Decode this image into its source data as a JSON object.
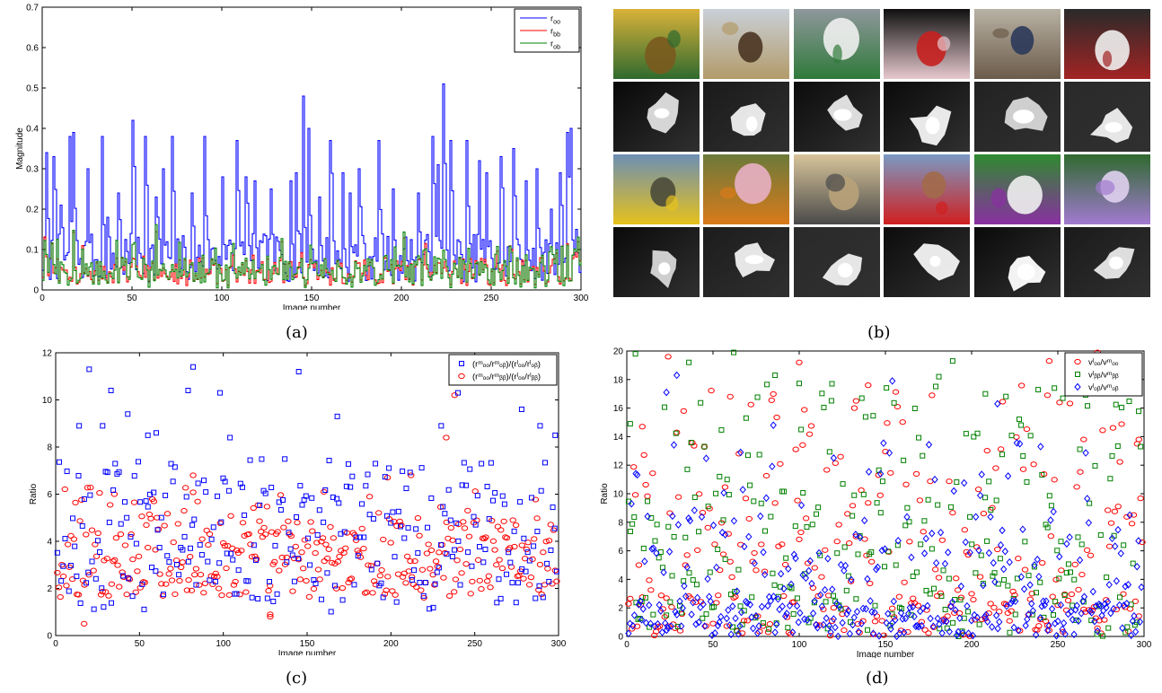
{
  "captions": {
    "a": "(a)",
    "b": "(b)",
    "c": "(c)",
    "d": "(d)"
  },
  "chart_data": [
    {
      "id": "a",
      "type": "line",
      "xlabel": "Image number",
      "ylabel": "Magnitude",
      "xlim": [
        0,
        300
      ],
      "ylim": [
        0,
        0.7
      ],
      "xticks": [
        0,
        50,
        100,
        150,
        200,
        250,
        300
      ],
      "yticks": [
        0,
        0.1,
        0.2,
        0.3,
        0.4,
        0.5,
        0.6,
        0.7
      ],
      "legend": {
        "placement": "top-right"
      },
      "series": [
        {
          "name": "r",
          "sub": "oo",
          "color": "#0000ff",
          "peaks": [
            [
              2,
              0.34
            ],
            [
              6,
              0.33
            ],
            [
              10,
              0.21
            ],
            [
              15,
              0.38
            ],
            [
              17,
              0.39
            ],
            [
              25,
              0.3
            ],
            [
              33,
              0.38
            ],
            [
              36,
              0.18
            ],
            [
              42,
              0.24
            ],
            [
              50,
              0.42
            ],
            [
              57,
              0.38
            ],
            [
              63,
              0.23
            ],
            [
              67,
              0.3
            ],
            [
              72,
              0.38
            ],
            [
              83,
              0.24
            ],
            [
              90,
              0.38
            ],
            [
              100,
              0.28
            ],
            [
              108,
              0.37
            ],
            [
              113,
              0.28
            ],
            [
              118,
              0.27
            ],
            [
              127,
              0.25
            ],
            [
              138,
              0.27
            ],
            [
              141,
              0.29
            ],
            [
              145,
              0.48
            ],
            [
              148,
              0.4
            ],
            [
              154,
              0.23
            ],
            [
              160,
              0.37
            ],
            [
              167,
              0.29
            ],
            [
              171,
              0.24
            ],
            [
              176,
              0.3
            ],
            [
              187,
              0.37
            ],
            [
              195,
              0.25
            ],
            [
              209,
              0.24
            ],
            [
              217,
              0.38
            ],
            [
              220,
              0.31
            ],
            [
              223,
              0.51
            ],
            [
              227,
              0.37
            ],
            [
              236,
              0.37
            ],
            [
              243,
              0.32
            ],
            [
              247,
              0.29
            ],
            [
              255,
              0.33
            ],
            [
              262,
              0.35
            ],
            [
              269,
              0.27
            ],
            [
              275,
              0.3
            ],
            [
              283,
              0.2
            ],
            [
              288,
              0.29
            ],
            [
              292,
              0.39
            ],
            [
              294,
              0.4
            ],
            [
              297,
              0.15
            ]
          ]
        },
        {
          "name": "r",
          "sub": "bb",
          "color": "#ff0000"
        },
        {
          "name": "r",
          "sub": "ob",
          "color": "#008000"
        }
      ]
    },
    {
      "id": "c",
      "type": "scatter",
      "xlabel": "Image number",
      "ylabel": "Ratio",
      "xlim": [
        0,
        300
      ],
      "ylim": [
        0,
        12
      ],
      "xticks": [
        0,
        50,
        100,
        150,
        200,
        250,
        300
      ],
      "yticks": [
        0,
        2,
        4,
        6,
        8,
        10,
        12
      ],
      "legend": {
        "placement": "top-right"
      },
      "series": [
        {
          "name": "(rᵐₒₒ/rᵐₒᵦ)/(rˡₒₒ/rˡₒᵦ)",
          "color": "#0000ff",
          "marker": "square",
          "highlights": [
            [
              20,
              11.3
            ],
            [
              82,
              11.4
            ],
            [
              145,
              11.2
            ],
            [
              33,
              10.4
            ],
            [
              79,
              10.4
            ],
            [
              98,
              10.3
            ],
            [
              240,
              10.3
            ],
            [
              43,
              9.4
            ],
            [
              168,
              9.3
            ],
            [
              230,
              8.9
            ],
            [
              278,
              9.6
            ],
            [
              289,
              8.9
            ],
            [
              298,
              8.5
            ],
            [
              55,
              8.5
            ],
            [
              104,
              8.4
            ],
            [
              60,
              8.6
            ],
            [
              14,
              8.9
            ],
            [
              28,
              8.9
            ]
          ]
        },
        {
          "name": "(rᵐₒₒ/rᵐᵦᵦ)/(rˡₒₒ/rˡᵦᵦ)",
          "color": "#ff0000",
          "marker": "circle",
          "highlights": [
            [
              238,
              10.2
            ],
            [
              233,
              8.4
            ],
            [
              82,
              6.8
            ],
            [
              198,
              6.7
            ],
            [
              212,
              6.8
            ],
            [
              160,
              6.1
            ],
            [
              35,
              6.0
            ],
            [
              17,
              0.5
            ],
            [
              128,
              0.8
            ],
            [
              128,
              0.9
            ]
          ]
        }
      ]
    },
    {
      "id": "d",
      "type": "scatter",
      "xlabel": "Image number",
      "ylabel": "Ratio",
      "xlim": [
        0,
        300
      ],
      "ylim": [
        0,
        20
      ],
      "xticks": [
        0,
        50,
        100,
        150,
        200,
        250,
        300
      ],
      "yticks": [
        0,
        2,
        4,
        6,
        8,
        10,
        12,
        14,
        16,
        18,
        20
      ],
      "legend": {
        "placement": "top-right"
      },
      "series": [
        {
          "name": "vˡₒₒ/vᵐₒₒ",
          "color": "#ff0000",
          "marker": "circle",
          "highlights": [
            [
              24,
              19.6
            ],
            [
              100,
              19.2
            ],
            [
              273,
              19.9
            ],
            [
              245,
              19.3
            ],
            [
              60,
              16.8
            ],
            [
              140,
              17.6
            ],
            [
              244,
              16.9
            ],
            [
              265,
              13.8
            ],
            [
              297,
              13.8
            ],
            [
              9,
              14.7
            ],
            [
              133,
              16.5
            ]
          ]
        },
        {
          "name": "vˡᵦᵦ/vᵐᵦᵦ",
          "color": "#008000",
          "marker": "square",
          "highlights": [
            [
              5,
              19.8
            ],
            [
              62,
              19.9
            ],
            [
              86,
              18.3
            ],
            [
              189,
              19.3
            ],
            [
              36,
              19.2
            ],
            [
              119,
              17.7
            ],
            [
              208,
              17.0
            ],
            [
              248,
              17.4
            ],
            [
              181,
              18.2
            ],
            [
              2,
              14.9
            ]
          ]
        },
        {
          "name": "vˡₒᵦ/vᵐₒᵦ",
          "color": "#0000ff",
          "marker": "diamond",
          "highlights": [
            [
              29,
              18.3
            ],
            [
              23,
              17.1
            ],
            [
              154,
              17.9
            ],
            [
              215,
              16.3
            ],
            [
              66,
              12.9
            ],
            [
              85,
              14.8
            ],
            [
              120,
              12.5
            ],
            [
              240,
              13.3
            ]
          ]
        }
      ]
    }
  ],
  "photos": [
    {
      "kind": "photo",
      "subject": "green-toy-figures",
      "colors": [
        "#d9b23a",
        "#2f6a2e",
        "#7a5a1e"
      ]
    },
    {
      "kind": "photo",
      "subject": "man-in-field",
      "colors": [
        "#c9d0d8",
        "#b39b6a",
        "#4a3422"
      ]
    },
    {
      "kind": "photo",
      "subject": "lighthouse",
      "colors": [
        "#8f979c",
        "#2f7a3a",
        "#f0f0f0"
      ]
    },
    {
      "kind": "photo",
      "subject": "bowl-of-strawberries",
      "colors": [
        "#101010",
        "#e7c9cf",
        "#c7201f"
      ]
    },
    {
      "kind": "photo",
      "subject": "girl-on-bench",
      "colors": [
        "#b8b2a4",
        "#6c5b4a",
        "#2b3a5a"
      ]
    },
    {
      "kind": "photo",
      "subject": "dog-with-meat",
      "colors": [
        "#2a2a2a",
        "#a32424",
        "#efefef"
      ]
    },
    {
      "kind": "map",
      "subject": "saliency-toy",
      "colors": [
        "#080808",
        "#e0e0e0"
      ]
    },
    {
      "kind": "map",
      "subject": "saliency-man",
      "colors": [
        "#1a1a1a",
        "#f0f0f0"
      ]
    },
    {
      "kind": "map",
      "subject": "saliency-lighthouse",
      "colors": [
        "#0c0c0c",
        "#e8e8e8"
      ]
    },
    {
      "kind": "map",
      "subject": "saliency-bowl",
      "colors": [
        "#0a0a0a",
        "#f4f4f4"
      ]
    },
    {
      "kind": "map",
      "subject": "saliency-girl",
      "colors": [
        "#222222",
        "#d8d8d8"
      ]
    },
    {
      "kind": "map",
      "subject": "saliency-dog",
      "colors": [
        "#2a2a2a",
        "#f0f0f0"
      ]
    },
    {
      "kind": "photo",
      "subject": "road-sign",
      "colors": [
        "#6d8fb4",
        "#e6c11c",
        "#4a4a3a"
      ]
    },
    {
      "kind": "photo",
      "subject": "butterfly",
      "colors": [
        "#6b7a3a",
        "#d97a1a",
        "#e8b0c4"
      ]
    },
    {
      "kind": "photo",
      "subject": "trash-can",
      "colors": [
        "#d8c49a",
        "#4a4a4a",
        "#b8a27a"
      ]
    },
    {
      "kind": "photo",
      "subject": "red-toy-balloons",
      "colors": [
        "#7a9ac4",
        "#d02020",
        "#a26a4a"
      ]
    },
    {
      "kind": "photo",
      "subject": "purple-flower",
      "colors": [
        "#2f8a2f",
        "#8a2fa2",
        "#f0f0f0"
      ]
    },
    {
      "kind": "photo",
      "subject": "violet-flower",
      "colors": [
        "#2f6a2f",
        "#a27ad0",
        "#e0d0f0"
      ]
    },
    {
      "kind": "map",
      "subject": "saliency-sign",
      "colors": [
        "#0a0a0a",
        "#d8d8d8"
      ]
    },
    {
      "kind": "map",
      "subject": "saliency-butterfly",
      "colors": [
        "#1c1c1c",
        "#f0f0f0"
      ]
    },
    {
      "kind": "map",
      "subject": "saliency-trash",
      "colors": [
        "#2a2a2a",
        "#f0f0f0"
      ]
    },
    {
      "kind": "map",
      "subject": "saliency-toy-red",
      "colors": [
        "#0c0c0c",
        "#f4f4f4"
      ]
    },
    {
      "kind": "map",
      "subject": "saliency-flower",
      "colors": [
        "#0a0a0a",
        "#ffffff"
      ]
    },
    {
      "kind": "map",
      "subject": "saliency-flower-2",
      "colors": [
        "#1a1a1a",
        "#e8e8e8"
      ]
    }
  ]
}
